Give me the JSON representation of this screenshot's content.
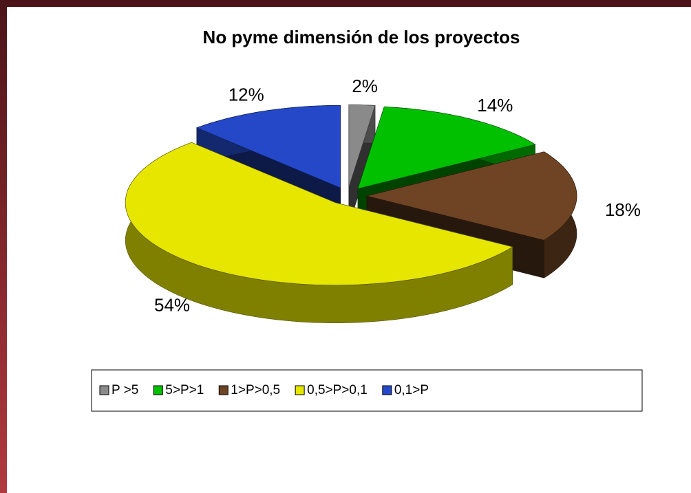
{
  "chart_data": {
    "type": "pie3d",
    "title": "No pyme dimensión de los proyectos",
    "categories": [
      "P >5",
      "5>P>1",
      "1>P>0,5",
      "0,5>P>0,1",
      "0,1>P"
    ],
    "values": [
      2,
      14,
      18,
      54,
      12
    ],
    "value_labels": [
      "2%",
      "14%",
      "18%",
      "54%",
      "12%"
    ],
    "colors": [
      "#8a8a8a",
      "#00c000",
      "#6e4424",
      "#e6e600",
      "#2448c8"
    ],
    "legend": "bottom"
  }
}
